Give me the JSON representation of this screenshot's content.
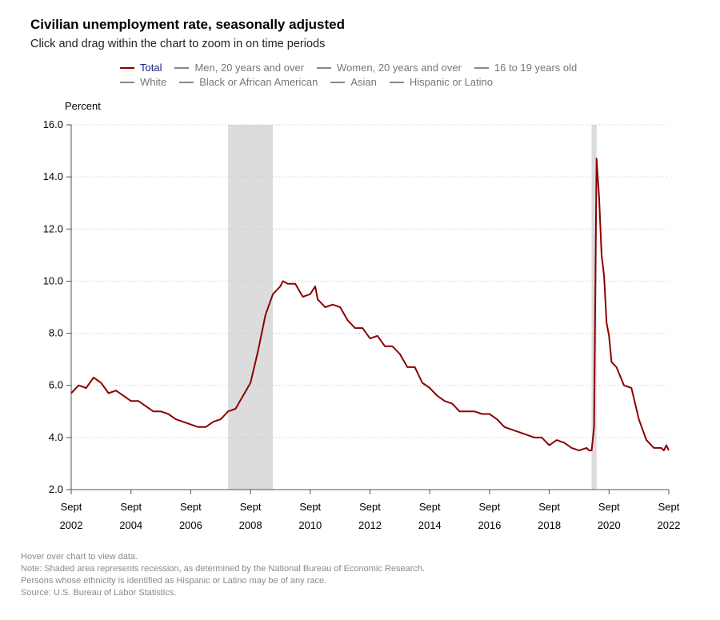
{
  "title": "Civilian unemployment rate, seasonally adjusted",
  "subtitle": "Click and drag within the chart to zoom in on time periods",
  "legend": [
    {
      "label": "Total",
      "active": true
    },
    {
      "label": "Men, 20 years and over",
      "active": false
    },
    {
      "label": "Women, 20 years and over",
      "active": false
    },
    {
      "label": "16 to 19 years old",
      "active": false
    },
    {
      "label": "White",
      "active": false
    },
    {
      "label": "Black or African American",
      "active": false
    },
    {
      "label": "Asian",
      "active": false
    },
    {
      "label": "Hispanic or Latino",
      "active": false
    }
  ],
  "colors": {
    "line": "#8b0000",
    "recession": "#dcdcdc",
    "grid": "#bbbbbb",
    "legend_active": "#1a237e"
  },
  "notes": [
    "Hover over chart to view data.",
    "Note: Shaded area represents recession, as determined by the National Bureau of Economic Research.",
    "Persons whose ethnicity is identified as Hispanic or Latino may be of any race.",
    "Source: U.S. Bureau of Labor Statistics."
  ],
  "chart_data": {
    "type": "line",
    "ylabel": "Percent",
    "ylim": [
      2.0,
      16.0
    ],
    "yticks": [
      "2.0",
      "4.0",
      "6.0",
      "8.0",
      "10.0",
      "12.0",
      "14.0",
      "16.0"
    ],
    "xlim": [
      "2002-09",
      "2022-09"
    ],
    "xticks": [
      {
        "month": "Sept",
        "year": "2002"
      },
      {
        "month": "Sept",
        "year": "2004"
      },
      {
        "month": "Sept",
        "year": "2006"
      },
      {
        "month": "Sept",
        "year": "2008"
      },
      {
        "month": "Sept",
        "year": "2010"
      },
      {
        "month": "Sept",
        "year": "2012"
      },
      {
        "month": "Sept",
        "year": "2014"
      },
      {
        "month": "Sept",
        "year": "2016"
      },
      {
        "month": "Sept",
        "year": "2018"
      },
      {
        "month": "Sept",
        "year": "2020"
      },
      {
        "month": "Sept",
        "year": "2022"
      }
    ],
    "grid": true,
    "recessions": [
      {
        "start": "2007-12",
        "end": "2009-06"
      },
      {
        "start": "2020-02",
        "end": "2020-04"
      }
    ],
    "series": [
      {
        "name": "Total",
        "x": [
          "2002-09",
          "2002-12",
          "2003-03",
          "2003-06",
          "2003-09",
          "2003-12",
          "2004-03",
          "2004-06",
          "2004-09",
          "2004-12",
          "2005-03",
          "2005-06",
          "2005-09",
          "2005-12",
          "2006-03",
          "2006-06",
          "2006-09",
          "2006-12",
          "2007-03",
          "2007-06",
          "2007-09",
          "2007-12",
          "2008-03",
          "2008-06",
          "2008-09",
          "2008-12",
          "2009-03",
          "2009-06",
          "2009-09",
          "2009-10",
          "2009-12",
          "2010-03",
          "2010-06",
          "2010-09",
          "2010-11",
          "2010-12",
          "2011-03",
          "2011-06",
          "2011-09",
          "2011-12",
          "2012-03",
          "2012-06",
          "2012-09",
          "2012-12",
          "2013-03",
          "2013-06",
          "2013-09",
          "2013-12",
          "2014-03",
          "2014-06",
          "2014-09",
          "2014-12",
          "2015-03",
          "2015-06",
          "2015-09",
          "2015-12",
          "2016-03",
          "2016-06",
          "2016-09",
          "2016-12",
          "2017-03",
          "2017-06",
          "2017-09",
          "2017-12",
          "2018-03",
          "2018-06",
          "2018-09",
          "2018-12",
          "2019-03",
          "2019-06",
          "2019-09",
          "2019-12",
          "2020-01",
          "2020-02",
          "2020-03",
          "2020-04",
          "2020-05",
          "2020-06",
          "2020-07",
          "2020-08",
          "2020-09",
          "2020-10",
          "2020-12",
          "2021-03",
          "2021-06",
          "2021-09",
          "2021-12",
          "2022-03",
          "2022-06",
          "2022-07",
          "2022-08",
          "2022-09"
        ],
        "values": [
          5.7,
          6.0,
          5.9,
          6.3,
          6.1,
          5.7,
          5.8,
          5.6,
          5.4,
          5.4,
          5.2,
          5.0,
          5.0,
          4.9,
          4.7,
          4.6,
          4.5,
          4.4,
          4.4,
          4.6,
          4.7,
          5.0,
          5.1,
          5.6,
          6.1,
          7.3,
          8.7,
          9.5,
          9.8,
          10.0,
          9.9,
          9.9,
          9.4,
          9.5,
          9.8,
          9.3,
          9.0,
          9.1,
          9.0,
          8.5,
          8.2,
          8.2,
          7.8,
          7.9,
          7.5,
          7.5,
          7.2,
          6.7,
          6.7,
          6.1,
          5.9,
          5.6,
          5.4,
          5.3,
          5.0,
          5.0,
          5.0,
          4.9,
          4.9,
          4.7,
          4.4,
          4.3,
          4.2,
          4.1,
          4.0,
          4.0,
          3.7,
          3.9,
          3.8,
          3.6,
          3.5,
          3.6,
          3.5,
          3.5,
          4.4,
          14.7,
          13.2,
          11.0,
          10.2,
          8.4,
          7.9,
          6.9,
          6.7,
          6.0,
          5.9,
          4.7,
          3.9,
          3.6,
          3.6,
          3.5,
          3.7,
          3.5
        ]
      }
    ]
  }
}
